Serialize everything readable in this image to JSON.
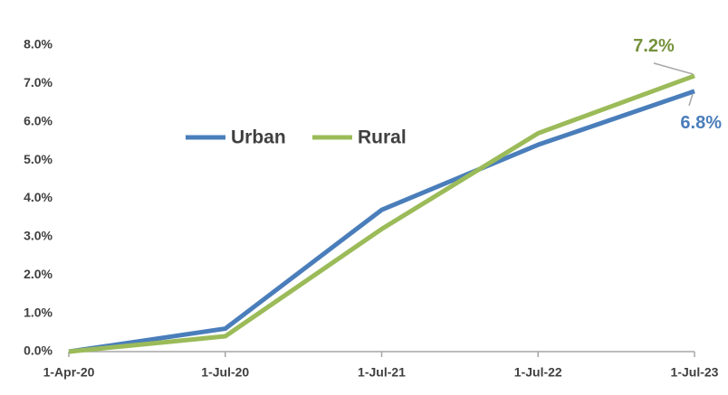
{
  "chart_data": {
    "type": "line",
    "categories": [
      "1-Apr-20",
      "1-Jul-20",
      "1-Jul-21",
      "1-Jul-22",
      "1-Jul-23"
    ],
    "series": [
      {
        "name": "Urban",
        "color": "#4a7ebb",
        "values": [
          0,
          0.6,
          3.7,
          5.4,
          6.8
        ],
        "value_labels": [
          null,
          null,
          null,
          null,
          "6.8%"
        ]
      },
      {
        "name": "Rural",
        "color": "#9bbb59",
        "values": [
          0,
          0.4,
          3.2,
          5.7,
          7.2
        ],
        "value_labels": [
          null,
          null,
          null,
          null,
          "7.2%"
        ]
      }
    ],
    "ylim": [
      0,
      8
    ],
    "yticks": [
      {
        "value": 0,
        "label": "0.0%"
      },
      {
        "value": 1,
        "label": "1.0%"
      },
      {
        "value": 2,
        "label": "2.0%"
      },
      {
        "value": 3,
        "label": "3.0%"
      },
      {
        "value": 4,
        "label": "4.0%"
      },
      {
        "value": 5,
        "label": "5.0%"
      },
      {
        "value": 6,
        "label": "6.0%"
      },
      {
        "value": 7,
        "label": "7.0%"
      },
      {
        "value": 8,
        "label": "8.0%"
      }
    ],
    "grid": false
  }
}
